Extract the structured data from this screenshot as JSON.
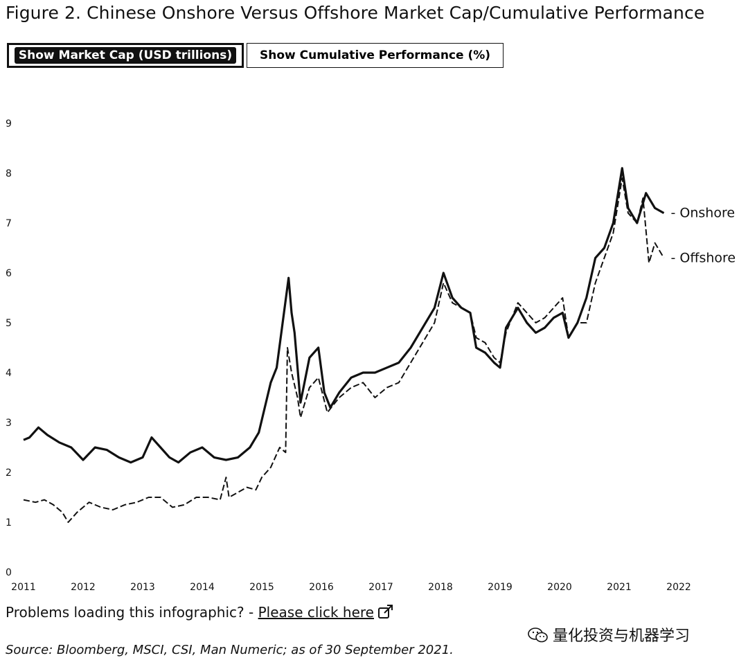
{
  "title": "Figure 2. Chinese Onshore Versus Offshore Market Cap/Cumulative Performance",
  "toggles": {
    "market_cap_label": "Show Market Cap (USD trillions)",
    "performance_label": "Show Cumulative Performance (%)",
    "active": "market_cap"
  },
  "chart_data": {
    "type": "line",
    "title": "",
    "xlabel": "",
    "ylabel": "",
    "xlim": [
      2011,
      2022
    ],
    "ylim": [
      0,
      9
    ],
    "x_ticks": [
      "2011",
      "2012",
      "2013",
      "2014",
      "2015",
      "2016",
      "2017",
      "2018",
      "2019",
      "2020",
      "2021",
      "2022"
    ],
    "y_ticks": [
      "0",
      "1",
      "2",
      "3",
      "4",
      "5",
      "6",
      "7",
      "8",
      "9"
    ],
    "grid": false,
    "legend": "inline-right",
    "series": [
      {
        "name": "Onshore",
        "style": "solid",
        "color": "#111111",
        "points": [
          [
            2011.0,
            2.65
          ],
          [
            2011.1,
            2.7
          ],
          [
            2011.25,
            2.9
          ],
          [
            2011.4,
            2.75
          ],
          [
            2011.6,
            2.6
          ],
          [
            2011.8,
            2.5
          ],
          [
            2012.0,
            2.25
          ],
          [
            2012.2,
            2.5
          ],
          [
            2012.4,
            2.45
          ],
          [
            2012.6,
            2.3
          ],
          [
            2012.8,
            2.2
          ],
          [
            2013.0,
            2.3
          ],
          [
            2013.15,
            2.7
          ],
          [
            2013.3,
            2.5
          ],
          [
            2013.45,
            2.3
          ],
          [
            2013.6,
            2.2
          ],
          [
            2013.8,
            2.4
          ],
          [
            2014.0,
            2.5
          ],
          [
            2014.2,
            2.3
          ],
          [
            2014.4,
            2.25
          ],
          [
            2014.6,
            2.3
          ],
          [
            2014.8,
            2.5
          ],
          [
            2014.95,
            2.8
          ],
          [
            2015.05,
            3.3
          ],
          [
            2015.15,
            3.8
          ],
          [
            2015.25,
            4.1
          ],
          [
            2015.35,
            5.0
          ],
          [
            2015.45,
            5.9
          ],
          [
            2015.5,
            5.2
          ],
          [
            2015.55,
            4.8
          ],
          [
            2015.65,
            3.4
          ],
          [
            2015.8,
            4.3
          ],
          [
            2015.95,
            4.5
          ],
          [
            2016.05,
            3.6
          ],
          [
            2016.15,
            3.3
          ],
          [
            2016.3,
            3.6
          ],
          [
            2016.5,
            3.9
          ],
          [
            2016.7,
            4.0
          ],
          [
            2016.9,
            4.0
          ],
          [
            2017.1,
            4.1
          ],
          [
            2017.3,
            4.2
          ],
          [
            2017.5,
            4.5
          ],
          [
            2017.7,
            4.9
          ],
          [
            2017.9,
            5.3
          ],
          [
            2018.05,
            6.0
          ],
          [
            2018.2,
            5.5
          ],
          [
            2018.35,
            5.3
          ],
          [
            2018.5,
            5.2
          ],
          [
            2018.6,
            4.5
          ],
          [
            2018.75,
            4.4
          ],
          [
            2018.9,
            4.2
          ],
          [
            2019.0,
            4.1
          ],
          [
            2019.1,
            4.9
          ],
          [
            2019.3,
            5.3
          ],
          [
            2019.45,
            5.0
          ],
          [
            2019.6,
            4.8
          ],
          [
            2019.75,
            4.9
          ],
          [
            2019.9,
            5.1
          ],
          [
            2020.05,
            5.2
          ],
          [
            2020.15,
            4.7
          ],
          [
            2020.3,
            5.0
          ],
          [
            2020.45,
            5.5
          ],
          [
            2020.6,
            6.3
          ],
          [
            2020.75,
            6.5
          ],
          [
            2020.9,
            7.0
          ],
          [
            2021.05,
            8.1
          ],
          [
            2021.15,
            7.3
          ],
          [
            2021.3,
            7.0
          ],
          [
            2021.45,
            7.6
          ],
          [
            2021.6,
            7.3
          ],
          [
            2021.75,
            7.2
          ]
        ]
      },
      {
        "name": "Offshore",
        "style": "dashed",
        "color": "#111111",
        "points": [
          [
            2011.0,
            1.45
          ],
          [
            2011.2,
            1.4
          ],
          [
            2011.35,
            1.45
          ],
          [
            2011.5,
            1.35
          ],
          [
            2011.65,
            1.2
          ],
          [
            2011.75,
            1.0
          ],
          [
            2011.9,
            1.2
          ],
          [
            2012.1,
            1.4
          ],
          [
            2012.3,
            1.3
          ],
          [
            2012.5,
            1.25
          ],
          [
            2012.7,
            1.35
          ],
          [
            2012.9,
            1.4
          ],
          [
            2013.1,
            1.5
          ],
          [
            2013.3,
            1.5
          ],
          [
            2013.5,
            1.3
          ],
          [
            2013.7,
            1.35
          ],
          [
            2013.9,
            1.5
          ],
          [
            2014.1,
            1.5
          ],
          [
            2014.3,
            1.45
          ],
          [
            2014.4,
            1.9
          ],
          [
            2014.45,
            1.5
          ],
          [
            2014.6,
            1.6
          ],
          [
            2014.75,
            1.7
          ],
          [
            2014.9,
            1.65
          ],
          [
            2015.0,
            1.9
          ],
          [
            2015.15,
            2.1
          ],
          [
            2015.3,
            2.5
          ],
          [
            2015.4,
            2.4
          ],
          [
            2015.43,
            4.5
          ],
          [
            2015.5,
            4.0
          ],
          [
            2015.6,
            3.5
          ],
          [
            2015.65,
            3.1
          ],
          [
            2015.8,
            3.7
          ],
          [
            2015.95,
            3.9
          ],
          [
            2016.1,
            3.2
          ],
          [
            2016.3,
            3.5
          ],
          [
            2016.5,
            3.7
          ],
          [
            2016.7,
            3.8
          ],
          [
            2016.9,
            3.5
          ],
          [
            2017.1,
            3.7
          ],
          [
            2017.3,
            3.8
          ],
          [
            2017.5,
            4.2
          ],
          [
            2017.7,
            4.6
          ],
          [
            2017.9,
            5.0
          ],
          [
            2018.05,
            5.8
          ],
          [
            2018.2,
            5.4
          ],
          [
            2018.35,
            5.3
          ],
          [
            2018.5,
            5.2
          ],
          [
            2018.6,
            4.7
          ],
          [
            2018.75,
            4.6
          ],
          [
            2018.9,
            4.3
          ],
          [
            2019.0,
            4.2
          ],
          [
            2019.1,
            4.8
          ],
          [
            2019.3,
            5.4
          ],
          [
            2019.45,
            5.2
          ],
          [
            2019.6,
            5.0
          ],
          [
            2019.75,
            5.1
          ],
          [
            2019.9,
            5.3
          ],
          [
            2020.05,
            5.5
          ],
          [
            2020.15,
            4.7
          ],
          [
            2020.3,
            5.0
          ],
          [
            2020.45,
            5.0
          ],
          [
            2020.6,
            5.8
          ],
          [
            2020.75,
            6.3
          ],
          [
            2020.9,
            6.8
          ],
          [
            2021.05,
            7.9
          ],
          [
            2021.15,
            7.2
          ],
          [
            2021.3,
            7.0
          ],
          [
            2021.4,
            7.5
          ],
          [
            2021.5,
            6.2
          ],
          [
            2021.6,
            6.6
          ],
          [
            2021.75,
            6.3
          ]
        ]
      }
    ]
  },
  "problems": {
    "prefix": "Problems loading this infographic? - ",
    "link_text": "Please click here"
  },
  "watermark": "量化投资与机器学习",
  "source": "Source: Bloomberg, MSCI, CSI, Man Numeric; as of 30 September 2021."
}
